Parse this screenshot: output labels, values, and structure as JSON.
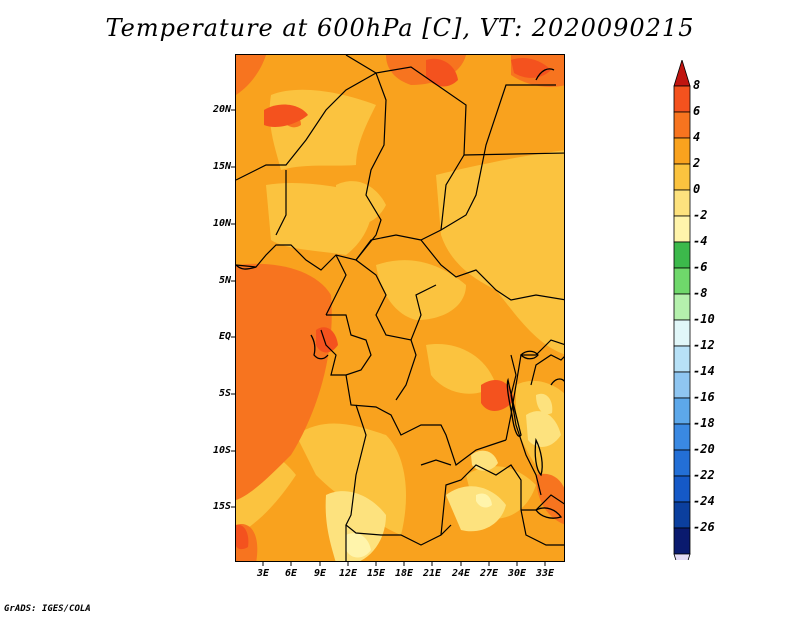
{
  "title": "Temperature at 600hPa [C], VT: 2020090215",
  "credit": "GrADS: IGES/COLA",
  "lat_labels": [
    "20N",
    "15N",
    "10N",
    "5N",
    "EQ",
    "5S",
    "10S",
    "15S"
  ],
  "lon_labels": [
    "3E",
    "6E",
    "9E",
    "12E",
    "15E",
    "18E",
    "21E",
    "24E",
    "27E",
    "30E",
    "33E"
  ],
  "colorbar": {
    "labels": [
      "8",
      "6",
      "4",
      "2",
      "0",
      "-2",
      "-4",
      "-6",
      "-8",
      "-10",
      "-12",
      "-14",
      "-16",
      "-18",
      "-20",
      "-22",
      "-24",
      "-26"
    ],
    "colors": [
      "#e8251a",
      "#f4521e",
      "#f7741f",
      "#f9a21e",
      "#fbc33f",
      "#fde27e",
      "#fff4ab",
      "#3cb94b",
      "#6fd86b",
      "#b5f1ad",
      "#e1f7f9",
      "#b7e1f7",
      "#8fc6f1",
      "#5da8ea",
      "#3a89e2",
      "#236fd6",
      "#1559c7",
      "#0b3f9e",
      "#0a1a6e"
    ],
    "arrow_top_color": "#c01510",
    "arrow_bottom_color": "#e4dcf5"
  },
  "field_colors": {
    "base": "#f9a21e",
    "warm": "#f7741f",
    "hot": "#f4521e",
    "mild": "#fbc33f",
    "cool": "#fde27e",
    "coolest": "#fff4ab"
  }
}
